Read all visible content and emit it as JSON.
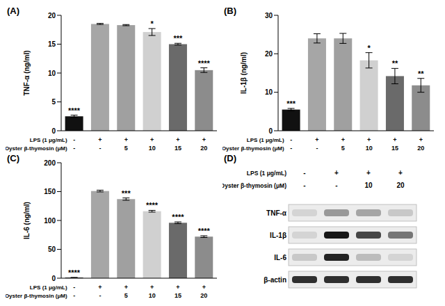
{
  "chart_data": [
    {
      "type": "bar",
      "title": "(A)",
      "y_label": "TNF-α (ng/ml)",
      "category_rows": [
        "LPS (1 μg/mL)",
        "Oyster β-thymosin (μM)"
      ],
      "categories": [
        [
          "-",
          "-"
        ],
        [
          "+",
          "-"
        ],
        [
          "+",
          "5"
        ],
        [
          "+",
          "10"
        ],
        [
          "+",
          "15"
        ],
        [
          "+",
          "20"
        ]
      ],
      "values": [
        2.5,
        18.5,
        18.3,
        17.1,
        15.0,
        10.5
      ],
      "errors": [
        0.2,
        0.1,
        0.1,
        0.6,
        0.15,
        0.4
      ],
      "annotations": [
        "****",
        null,
        null,
        "*",
        "***",
        "****"
      ],
      "colors": [
        "#111111",
        "#a6a6a6",
        "#a0a0a0",
        "#d0d0d0",
        "#6a6a6a",
        "#8c8c8c"
      ],
      "ylim": [
        0,
        20
      ],
      "yticks": [
        0,
        5,
        10,
        15,
        20
      ]
    },
    {
      "type": "bar",
      "title": "(B)",
      "y_label": "IL-1β (ng/ml)",
      "category_rows": [
        "LPS (1 μg/mL)",
        "Oyster β-thymosin (μM)"
      ],
      "categories": [
        [
          "-",
          "-"
        ],
        [
          "+",
          "-"
        ],
        [
          "+",
          "5"
        ],
        [
          "+",
          "10"
        ],
        [
          "+",
          "15"
        ],
        [
          "+",
          "20"
        ]
      ],
      "values": [
        5.5,
        24.0,
        24.0,
        18.3,
        14.2,
        11.8
      ],
      "errors": [
        0.3,
        1.2,
        1.3,
        2.0,
        2.0,
        1.8
      ],
      "annotations": [
        "***",
        null,
        null,
        "*",
        "**",
        "**"
      ],
      "colors": [
        "#111111",
        "#a6a6a6",
        "#a0a0a0",
        "#d0d0d0",
        "#6a6a6a",
        "#8c8c8c"
      ],
      "ylim": [
        0,
        30
      ],
      "yticks": [
        0,
        10,
        20,
        30
      ]
    },
    {
      "type": "bar",
      "title": "(C)",
      "y_label": "IL-6 (ng/ml)",
      "category_rows": [
        "LPS (1 μg/mL)",
        "Oyster β-thymosin (μM)"
      ],
      "categories": [
        [
          "-",
          "-"
        ],
        [
          "+",
          "-"
        ],
        [
          "+",
          "5"
        ],
        [
          "+",
          "10"
        ],
        [
          "+",
          "15"
        ],
        [
          "+",
          "20"
        ]
      ],
      "values": [
        1,
        151,
        137,
        116,
        96,
        72
      ],
      "errors": [
        0.3,
        1.5,
        2,
        1.5,
        1.5,
        1.5
      ],
      "annotations": [
        "****",
        null,
        "***",
        "****",
        "****",
        "****"
      ],
      "colors": [
        "#111111",
        "#a6a6a6",
        "#a0a0a0",
        "#d0d0d0",
        "#6a6a6a",
        "#8c8c8c"
      ],
      "ylim": [
        0,
        200
      ],
      "yticks": [
        0,
        50,
        100,
        150,
        200
      ]
    },
    {
      "type": "blot",
      "title": "(D)",
      "category_rows": [
        "LPS (1 μg/mL)",
        "Oyster β-thymosin (μM)"
      ],
      "categories": [
        [
          "-",
          "-"
        ],
        [
          "+",
          "-"
        ],
        [
          "+",
          "10"
        ],
        [
          "+",
          "20"
        ]
      ],
      "bands": [
        {
          "name": "TNF-α",
          "values": [
            0.1,
            0.35,
            0.3,
            0.15
          ]
        },
        {
          "name": "IL-1β",
          "values": [
            0.1,
            0.9,
            0.7,
            0.5
          ]
        },
        {
          "name": "IL-6",
          "values": [
            0.15,
            0.85,
            0.2,
            0.1
          ]
        },
        {
          "name": "β-actin",
          "values": [
            0.8,
            0.8,
            0.8,
            0.8
          ]
        }
      ]
    }
  ]
}
